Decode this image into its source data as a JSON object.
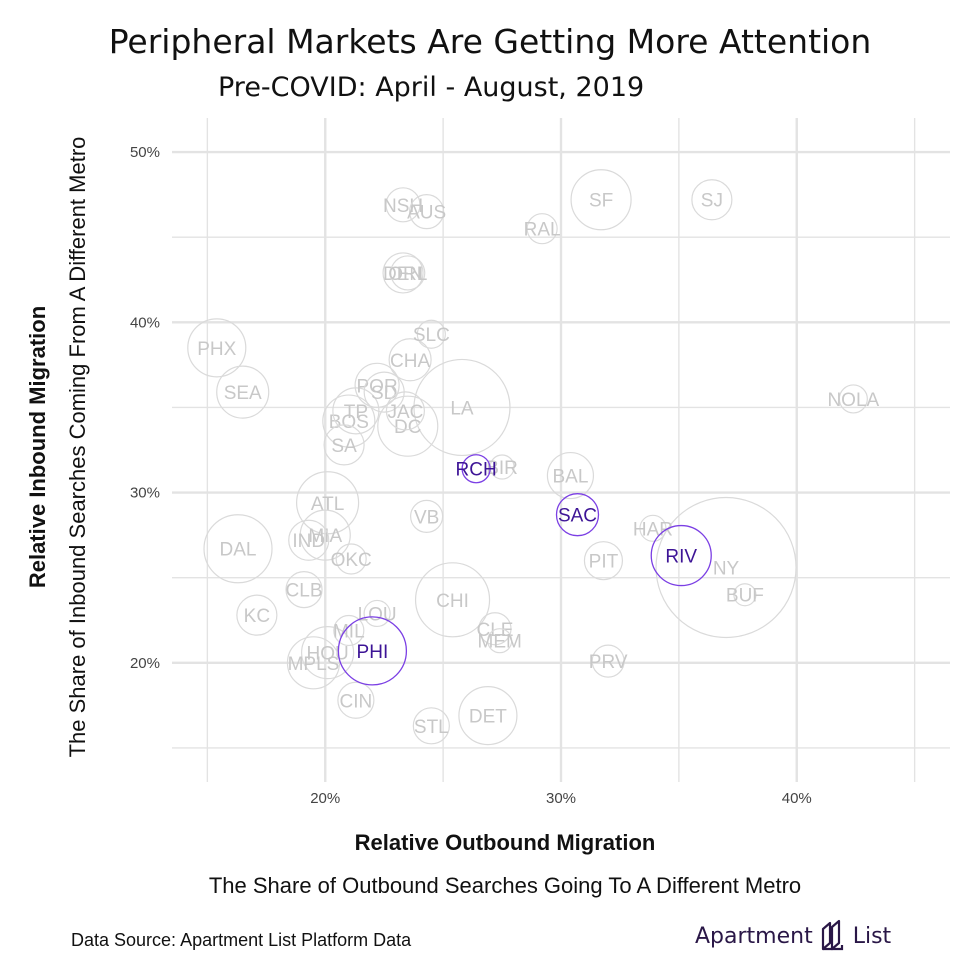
{
  "title": "Peripheral Markets Are Getting More Attention",
  "subtitle": "Pre-COVID: April - August, 2019",
  "source": "Data Source: Apartment List Platform Data",
  "logo": {
    "left": "Apartment",
    "right": "List"
  },
  "colors": {
    "grid": "#e3e3e3",
    "muted_circle": "#dadada",
    "muted_text": "#c8c8c8",
    "highlight": "#7b3fe4",
    "highlight_text": "#3d1496"
  },
  "chart_data": {
    "type": "scatter",
    "xlabel": "Relative Outbound Migration",
    "xlabel_sub": "The Share of Outbound Searches Going To A Different Metro",
    "ylabel": "Relative Inbound Migration",
    "ylabel_sub": "The Share of Inbound Searches Coming From A Different Metro",
    "xlim": [
      13.5,
      46.5
    ],
    "ylim": [
      13,
      52
    ],
    "x_ticks": [
      20,
      30,
      40
    ],
    "x_tick_labels": [
      "20%",
      "30%",
      "40%"
    ],
    "y_ticks": [
      20,
      30,
      40,
      50
    ],
    "y_tick_labels": [
      "20%",
      "30%",
      "40%",
      "50%"
    ],
    "grid": true,
    "points": [
      {
        "label": "SF",
        "x": 31.7,
        "y": 47.2,
        "r": 30,
        "highlight": false
      },
      {
        "label": "SJ",
        "x": 36.4,
        "y": 47.2,
        "r": 20,
        "highlight": false
      },
      {
        "label": "NSH",
        "x": 23.3,
        "y": 46.9,
        "r": 17,
        "highlight": false
      },
      {
        "label": "AUS",
        "x": 24.3,
        "y": 46.5,
        "r": 17,
        "highlight": false
      },
      {
        "label": "RAL",
        "x": 29.2,
        "y": 45.5,
        "r": 15,
        "highlight": false
      },
      {
        "label": "DEN",
        "x": 23.3,
        "y": 42.9,
        "r": 20,
        "highlight": false
      },
      {
        "label": "ORL",
        "x": 23.5,
        "y": 42.9,
        "r": 17,
        "highlight": false
      },
      {
        "label": "PHX",
        "x": 15.4,
        "y": 38.5,
        "r": 29,
        "highlight": false
      },
      {
        "label": "SLC",
        "x": 24.5,
        "y": 39.3,
        "r": 14,
        "highlight": false
      },
      {
        "label": "CHA",
        "x": 23.6,
        "y": 37.8,
        "r": 21,
        "highlight": false
      },
      {
        "label": "SEA",
        "x": 16.5,
        "y": 35.9,
        "r": 26,
        "highlight": false
      },
      {
        "label": "POR",
        "x": 22.2,
        "y": 36.3,
        "r": 22,
        "highlight": false
      },
      {
        "label": "SD",
        "x": 22.5,
        "y": 35.9,
        "r": 20,
        "highlight": false
      },
      {
        "label": "LA",
        "x": 25.8,
        "y": 35.0,
        "r": 48,
        "highlight": false
      },
      {
        "label": "NOLA",
        "x": 42.4,
        "y": 35.5,
        "r": 14,
        "highlight": false
      },
      {
        "label": "TP",
        "x": 21.3,
        "y": 34.8,
        "r": 23,
        "highlight": false
      },
      {
        "label": "JAC",
        "x": 23.4,
        "y": 34.8,
        "r": 19,
        "highlight": false
      },
      {
        "label": "BOS",
        "x": 21.0,
        "y": 34.2,
        "r": 26,
        "highlight": false
      },
      {
        "label": "DC",
        "x": 23.5,
        "y": 33.9,
        "r": 30,
        "highlight": false
      },
      {
        "label": "SA",
        "x": 20.8,
        "y": 32.8,
        "r": 20,
        "highlight": false
      },
      {
        "label": "RCH",
        "x": 26.4,
        "y": 31.4,
        "r": 14,
        "highlight": true
      },
      {
        "label": "BIR",
        "x": 27.5,
        "y": 31.5,
        "r": 12,
        "highlight": false
      },
      {
        "label": "BAL",
        "x": 30.4,
        "y": 31.0,
        "r": 23,
        "highlight": false
      },
      {
        "label": "ATL",
        "x": 20.1,
        "y": 29.4,
        "r": 31,
        "highlight": false
      },
      {
        "label": "SAC",
        "x": 30.7,
        "y": 28.7,
        "r": 21,
        "highlight": true
      },
      {
        "label": "VB",
        "x": 24.3,
        "y": 28.6,
        "r": 16,
        "highlight": false
      },
      {
        "label": "HAR",
        "x": 33.9,
        "y": 27.9,
        "r": 13,
        "highlight": false
      },
      {
        "label": "MIA",
        "x": 20.0,
        "y": 27.5,
        "r": 25,
        "highlight": false
      },
      {
        "label": "IND",
        "x": 19.3,
        "y": 27.2,
        "r": 20,
        "highlight": false
      },
      {
        "label": "DAL",
        "x": 16.3,
        "y": 26.7,
        "r": 34,
        "highlight": false
      },
      {
        "label": "RIV",
        "x": 35.1,
        "y": 26.3,
        "r": 30,
        "highlight": true
      },
      {
        "label": "PIT",
        "x": 31.8,
        "y": 26.0,
        "r": 19,
        "highlight": false
      },
      {
        "label": "OKC",
        "x": 21.1,
        "y": 26.1,
        "r": 15,
        "highlight": false
      },
      {
        "label": "NY",
        "x": 37.0,
        "y": 25.6,
        "r": 70,
        "highlight": false
      },
      {
        "label": "CHI",
        "x": 25.4,
        "y": 23.7,
        "r": 37,
        "highlight": false
      },
      {
        "label": "CLB",
        "x": 19.1,
        "y": 24.3,
        "r": 18,
        "highlight": false
      },
      {
        "label": "BUF",
        "x": 37.8,
        "y": 24.0,
        "r": 11,
        "highlight": false
      },
      {
        "label": "KC",
        "x": 17.1,
        "y": 22.8,
        "r": 20,
        "highlight": false
      },
      {
        "label": "LOU",
        "x": 22.2,
        "y": 22.9,
        "r": 13,
        "highlight": false
      },
      {
        "label": "CLE",
        "x": 27.2,
        "y": 22.0,
        "r": 16,
        "highlight": false
      },
      {
        "label": "MIL",
        "x": 21.0,
        "y": 21.9,
        "r": 15,
        "highlight": false
      },
      {
        "label": "MEM",
        "x": 27.4,
        "y": 21.3,
        "r": 12,
        "highlight": false
      },
      {
        "label": "HOU",
        "x": 20.1,
        "y": 20.6,
        "r": 26,
        "highlight": false
      },
      {
        "label": "PHI",
        "x": 22.0,
        "y": 20.7,
        "r": 34,
        "highlight": true
      },
      {
        "label": "MPLS",
        "x": 19.5,
        "y": 20.0,
        "r": 26,
        "highlight": false
      },
      {
        "label": "PRV",
        "x": 32.0,
        "y": 20.1,
        "r": 16,
        "highlight": false
      },
      {
        "label": "CIN",
        "x": 21.3,
        "y": 17.8,
        "r": 18,
        "highlight": false
      },
      {
        "label": "DET",
        "x": 26.9,
        "y": 16.9,
        "r": 29,
        "highlight": false
      },
      {
        "label": "STL",
        "x": 24.5,
        "y": 16.3,
        "r": 18,
        "highlight": false
      }
    ]
  }
}
